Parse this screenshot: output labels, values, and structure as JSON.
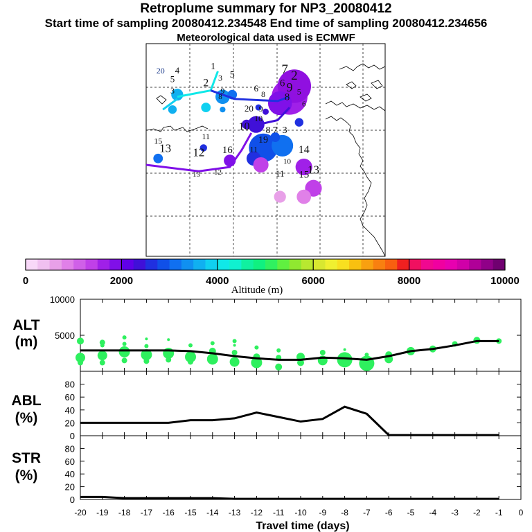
{
  "header": {
    "title": "Retroplume summary for NP3_20080412",
    "sampling_times": "Start time of sampling 20080412.234548     End time of sampling 20080412.234656",
    "met_note": "Meteorological data used is ECMWF"
  },
  "colorbar": {
    "ticks": [
      "0",
      "2000",
      "4000",
      "6000",
      "8000",
      "10000"
    ],
    "label": "Altitude (m)",
    "colors": [
      "#f8d8f8",
      "#f0c0f0",
      "#e8a0e8",
      "#e080e8",
      "#d060e8",
      "#c040e8",
      "#a020e8",
      "#8010e8",
      "#6000e8",
      "#4010d8",
      "#2030e0",
      "#1050e8",
      "#1070f0",
      "#1090f0",
      "#10b0f0",
      "#10d0f0",
      "#10e8e8",
      "#10f0d0",
      "#10f0a0",
      "#10f080",
      "#30f060",
      "#60f040",
      "#90e830",
      "#b8e830",
      "#d8e830",
      "#f0f030",
      "#f8e020",
      "#f8c010",
      "#f8a010",
      "#f88010",
      "#f86010",
      "#f02020",
      "#f01060",
      "#f00890",
      "#f000a0",
      "#e800b0",
      "#d000a8",
      "#b00098",
      "#900088",
      "#700070"
    ]
  },
  "map": {
    "labels": [
      {
        "t": "20",
        "lx": 0.06,
        "ly": 0.14,
        "s": 12,
        "c": "#1b3a8a"
      },
      {
        "t": "4",
        "lx": 0.13,
        "ly": 0.14,
        "s": 13,
        "c": "#111"
      },
      {
        "t": "5",
        "lx": 0.11,
        "ly": 0.18,
        "s": 13,
        "c": "#111"
      },
      {
        "t": "3",
        "lx": 0.11,
        "ly": 0.235,
        "s": 12,
        "c": "#111"
      },
      {
        "t": "2",
        "lx": 0.25,
        "ly": 0.2,
        "s": 16,
        "c": "#111"
      },
      {
        "t": "1",
        "lx": 0.28,
        "ly": 0.12,
        "s": 14,
        "c": "#111"
      },
      {
        "t": "3",
        "lx": 0.31,
        "ly": 0.175,
        "s": 12,
        "c": "#111"
      },
      {
        "t": "5",
        "lx": 0.36,
        "ly": 0.16,
        "s": 14,
        "c": "#111"
      },
      {
        "t": "9",
        "lx": 0.32,
        "ly": 0.235,
        "s": 12,
        "c": "#111"
      },
      {
        "t": "8",
        "lx": 0.31,
        "ly": 0.26,
        "s": 11,
        "c": "#111"
      },
      {
        "t": "6",
        "lx": 0.46,
        "ly": 0.225,
        "s": 13,
        "c": "#111"
      },
      {
        "t": "8",
        "lx": 0.49,
        "ly": 0.25,
        "s": 12,
        "c": "#111"
      },
      {
        "t": "7",
        "lx": 0.58,
        "ly": 0.14,
        "s": 19,
        "c": "#111"
      },
      {
        "t": "2",
        "lx": 0.62,
        "ly": 0.17,
        "s": 19,
        "c": "#111"
      },
      {
        "t": "6",
        "lx": 0.57,
        "ly": 0.2,
        "s": 15,
        "c": "#111"
      },
      {
        "t": "9",
        "lx": 0.6,
        "ly": 0.225,
        "s": 18,
        "c": "#111"
      },
      {
        "t": "8",
        "lx": 0.59,
        "ly": 0.265,
        "s": 15,
        "c": "#111"
      },
      {
        "t": "5",
        "lx": 0.64,
        "ly": 0.24,
        "s": 12,
        "c": "#111"
      },
      {
        "t": "6",
        "lx": 0.66,
        "ly": 0.295,
        "s": 11,
        "c": "#111"
      },
      {
        "t": "20",
        "lx": 0.43,
        "ly": 0.32,
        "s": 13,
        "c": "#111"
      },
      {
        "t": "9",
        "lx": 0.48,
        "ly": 0.32,
        "s": 12,
        "c": "#111"
      },
      {
        "t": "10",
        "lx": 0.47,
        "ly": 0.365,
        "s": 12,
        "c": "#111"
      },
      {
        "t": "10",
        "lx": 0.41,
        "ly": 0.405,
        "s": 16,
        "c": "#111"
      },
      {
        "t": "8",
        "lx": 0.51,
        "ly": 0.42,
        "s": 14,
        "c": "#111"
      },
      {
        "t": "7",
        "lx": 0.54,
        "ly": 0.42,
        "s": 14,
        "c": "#111"
      },
      {
        "t": "3",
        "lx": 0.58,
        "ly": 0.42,
        "s": 14,
        "c": "#111"
      },
      {
        "t": "19",
        "lx": 0.49,
        "ly": 0.465,
        "s": 14,
        "c": "#111"
      },
      {
        "t": "11",
        "lx": 0.25,
        "ly": 0.45,
        "s": 12,
        "c": "#111"
      },
      {
        "t": "15",
        "lx": 0.05,
        "ly": 0.47,
        "s": 12,
        "c": "#111"
      },
      {
        "t": "13",
        "lx": 0.08,
        "ly": 0.51,
        "s": 17,
        "c": "#111"
      },
      {
        "t": "12",
        "lx": 0.22,
        "ly": 0.53,
        "s": 17,
        "c": "#111"
      },
      {
        "t": "16",
        "lx": 0.34,
        "ly": 0.515,
        "s": 15,
        "c": "#111"
      },
      {
        "t": "11",
        "lx": 0.45,
        "ly": 0.51,
        "s": 12,
        "c": "#111"
      },
      {
        "t": "14",
        "lx": 0.66,
        "ly": 0.515,
        "s": 16,
        "c": "#111"
      },
      {
        "t": "10",
        "lx": 0.59,
        "ly": 0.565,
        "s": 11,
        "c": "#111"
      },
      {
        "t": "13",
        "lx": 0.21,
        "ly": 0.625,
        "s": 11,
        "c": "#111"
      },
      {
        "t": "12",
        "lx": 0.3,
        "ly": 0.615,
        "s": 11,
        "c": "#111"
      },
      {
        "t": "11",
        "lx": 0.56,
        "ly": 0.625,
        "s": 13,
        "c": "#111"
      },
      {
        "t": "13",
        "lx": 0.7,
        "ly": 0.61,
        "s": 17,
        "c": "#111"
      },
      {
        "t": "15",
        "lx": 0.66,
        "ly": 0.63,
        "s": 15,
        "c": "#111"
      }
    ]
  },
  "chart_data": [
    {
      "type": "scatter",
      "panel": "altitude",
      "ylabel": "ALT\n(m)",
      "ylim": [
        0,
        10000
      ],
      "yticks": [
        5000,
        10000
      ],
      "xlim": [
        -20,
        0
      ],
      "median_line": {
        "x": [
          -20,
          -19,
          -18,
          -17,
          -16,
          -15,
          -14,
          -13,
          -12,
          -11,
          -10,
          -9,
          -8,
          -7,
          -6,
          -5,
          -4,
          -3,
          -2,
          -1
        ],
        "y": [
          2900,
          2900,
          2900,
          2900,
          2900,
          2800,
          2500,
          2100,
          1800,
          1600,
          1600,
          1900,
          1800,
          1600,
          2100,
          2800,
          3100,
          3600,
          4200,
          4200
        ]
      },
      "scatter_series": [
        {
          "x": -20,
          "y": 4200,
          "r": 5
        },
        {
          "x": -20,
          "y": 1900,
          "r": 7
        },
        {
          "x": -20,
          "y": 1200,
          "r": 4
        },
        {
          "x": -19,
          "y": 4000,
          "r": 4
        },
        {
          "x": -19,
          "y": 3600,
          "r": 3
        },
        {
          "x": -19,
          "y": 2200,
          "r": 7
        },
        {
          "x": -19,
          "y": 1200,
          "r": 4
        },
        {
          "x": -18,
          "y": 4700,
          "r": 3
        },
        {
          "x": -18,
          "y": 3800,
          "r": 3
        },
        {
          "x": -18,
          "y": 2700,
          "r": 8
        },
        {
          "x": -18,
          "y": 1500,
          "r": 4
        },
        {
          "x": -17,
          "y": 4500,
          "r": 2
        },
        {
          "x": -17,
          "y": 3500,
          "r": 3
        },
        {
          "x": -17,
          "y": 2300,
          "r": 8
        },
        {
          "x": -17,
          "y": 1400,
          "r": 4
        },
        {
          "x": -16,
          "y": 4400,
          "r": 2
        },
        {
          "x": -16,
          "y": 2500,
          "r": 8
        },
        {
          "x": -16,
          "y": 1600,
          "r": 4
        },
        {
          "x": -15,
          "y": 3600,
          "r": 3
        },
        {
          "x": -15,
          "y": 2000,
          "r": 8
        },
        {
          "x": -15,
          "y": 1300,
          "r": 4
        },
        {
          "x": -14,
          "y": 3900,
          "r": 3
        },
        {
          "x": -14,
          "y": 2800,
          "r": 5
        },
        {
          "x": -14,
          "y": 1700,
          "r": 8
        },
        {
          "x": -13,
          "y": 4200,
          "r": 3
        },
        {
          "x": -13,
          "y": 3600,
          "r": 2
        },
        {
          "x": -13,
          "y": 2600,
          "r": 4
        },
        {
          "x": -13,
          "y": 1300,
          "r": 7
        },
        {
          "x": -12,
          "y": 3300,
          "r": 3
        },
        {
          "x": -12,
          "y": 2000,
          "r": 5
        },
        {
          "x": -12,
          "y": 1200,
          "r": 8
        },
        {
          "x": -11,
          "y": 2900,
          "r": 3
        },
        {
          "x": -11,
          "y": 1900,
          "r": 4
        },
        {
          "x": -11,
          "y": 600,
          "r": 5
        },
        {
          "x": -10,
          "y": 2000,
          "r": 6
        },
        {
          "x": -10,
          "y": 1200,
          "r": 5
        },
        {
          "x": -9,
          "y": 2600,
          "r": 4
        },
        {
          "x": -9,
          "y": 1500,
          "r": 7
        },
        {
          "x": -8,
          "y": 3000,
          "r": 2
        },
        {
          "x": -8,
          "y": 1600,
          "r": 11
        },
        {
          "x": -7,
          "y": 2300,
          "r": 3
        },
        {
          "x": -7,
          "y": 1100,
          "r": 11
        },
        {
          "x": -6,
          "y": 2300,
          "r": 5
        },
        {
          "x": -6,
          "y": 1700,
          "r": 6
        },
        {
          "x": -5,
          "y": 2800,
          "r": 6
        },
        {
          "x": -4,
          "y": 3100,
          "r": 5
        },
        {
          "x": -3,
          "y": 3800,
          "r": 4
        },
        {
          "x": -2,
          "y": 4300,
          "r": 5
        },
        {
          "x": -1,
          "y": 4200,
          "r": 4
        }
      ]
    },
    {
      "type": "line",
      "panel": "abl",
      "ylabel": "ABL\n(%)",
      "ylim": [
        0,
        100
      ],
      "yticks": [
        0,
        20,
        40,
        60,
        80
      ],
      "xlim": [
        -20,
        0
      ],
      "x": [
        -20,
        -19,
        -18,
        -17,
        -16,
        -15,
        -14,
        -13,
        -12,
        -11,
        -10,
        -9,
        -8,
        -7,
        -6,
        -5,
        -4,
        -3,
        -2,
        -1
      ],
      "y": [
        20,
        20,
        20,
        20,
        20,
        24,
        24,
        27,
        36,
        29,
        22,
        26,
        45,
        34,
        1,
        1,
        1,
        1,
        1,
        1
      ]
    },
    {
      "type": "line",
      "panel": "str",
      "ylabel": "STR\n(%)",
      "ylim": [
        0,
        100
      ],
      "yticks": [
        0,
        20,
        40,
        60,
        80
      ],
      "xlim": [
        -20,
        0
      ],
      "xlabel": "Travel time (days)",
      "xticks": [
        "-20",
        "-19",
        "-18",
        "-17",
        "-16",
        "-15",
        "-14",
        "-13",
        "-12",
        "-11",
        "-10",
        "-9",
        "-8",
        "-7",
        "-6",
        "-5",
        "-4",
        "-3",
        "-2",
        "-1",
        "0"
      ],
      "x": [
        -20,
        -19,
        -18,
        -17,
        -16,
        -15,
        -14,
        -13,
        -12,
        -11,
        -10,
        -9,
        -8,
        -7,
        -6,
        -5,
        -4,
        -3,
        -2,
        -1
      ],
      "y": [
        4,
        4,
        2,
        2,
        2,
        2,
        2,
        1,
        1,
        1,
        1,
        1,
        1,
        1,
        1,
        1,
        1,
        1,
        1,
        1
      ]
    }
  ]
}
